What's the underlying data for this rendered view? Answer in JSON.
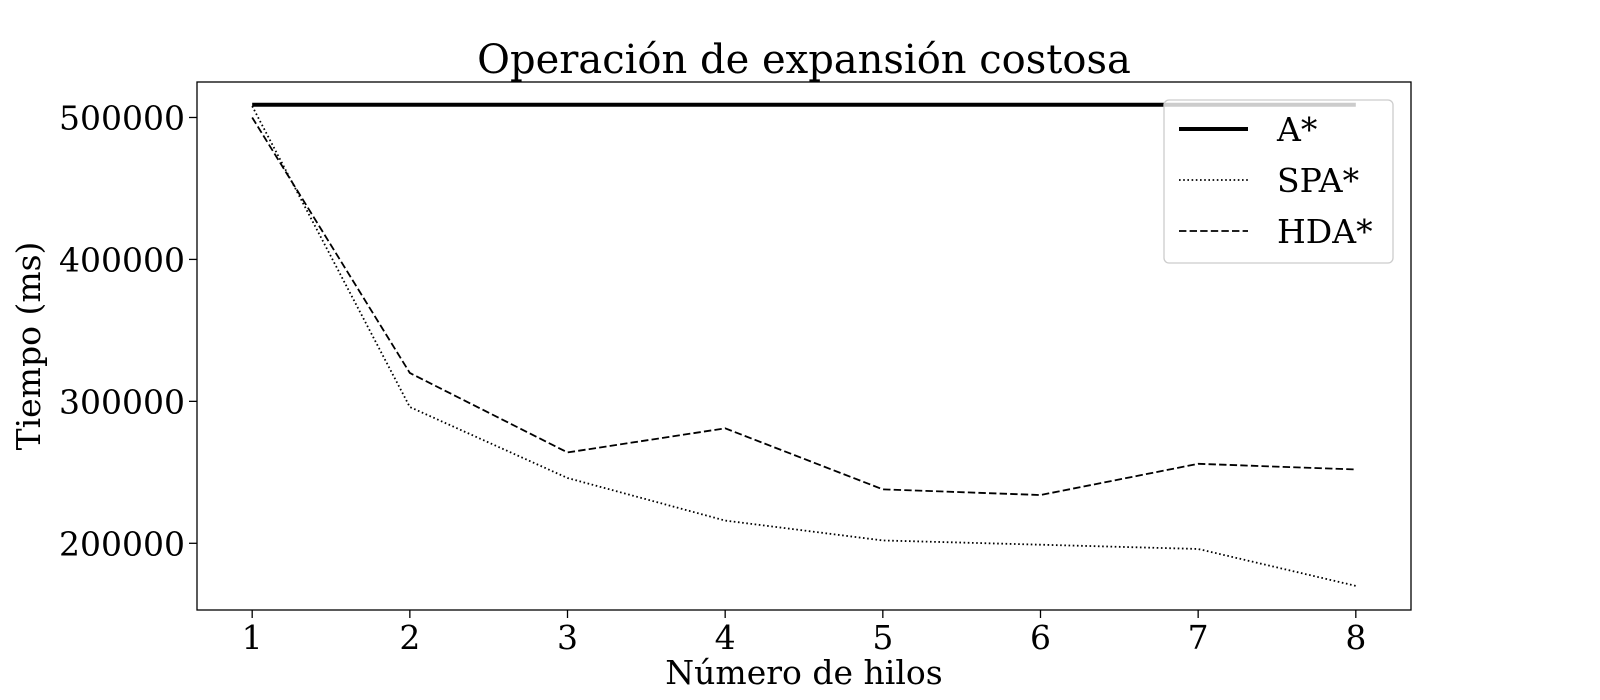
{
  "chart_data": {
    "type": "line",
    "title": "Operación de expansión costosa",
    "xlabel": "Número de hilos",
    "ylabel": "Tiempo (ms)",
    "x": [
      1,
      2,
      3,
      4,
      5,
      6,
      7,
      8
    ],
    "xlim": [
      0.65,
      8.35
    ],
    "ylim": [
      153000,
      525000
    ],
    "xticks": [
      "1",
      "2",
      "3",
      "4",
      "5",
      "6",
      "7",
      "8"
    ],
    "yticks": [
      "200000",
      "300000",
      "400000",
      "500000"
    ],
    "grid": false,
    "legend_position": "top-right",
    "series": [
      {
        "name": "A*",
        "style": "solid",
        "color": "#000000",
        "values": [
          509000,
          509000,
          509000,
          509000,
          509000,
          509000,
          509000,
          509000
        ]
      },
      {
        "name": "SPA*",
        "style": "dotted",
        "color": "#000000",
        "values": [
          508000,
          296000,
          246000,
          216000,
          202000,
          199000,
          196000,
          170000
        ]
      },
      {
        "name": "HDA*",
        "style": "dashed",
        "color": "#000000",
        "values": [
          500000,
          320000,
          264000,
          281000,
          238000,
          234000,
          256000,
          252000
        ]
      }
    ]
  }
}
